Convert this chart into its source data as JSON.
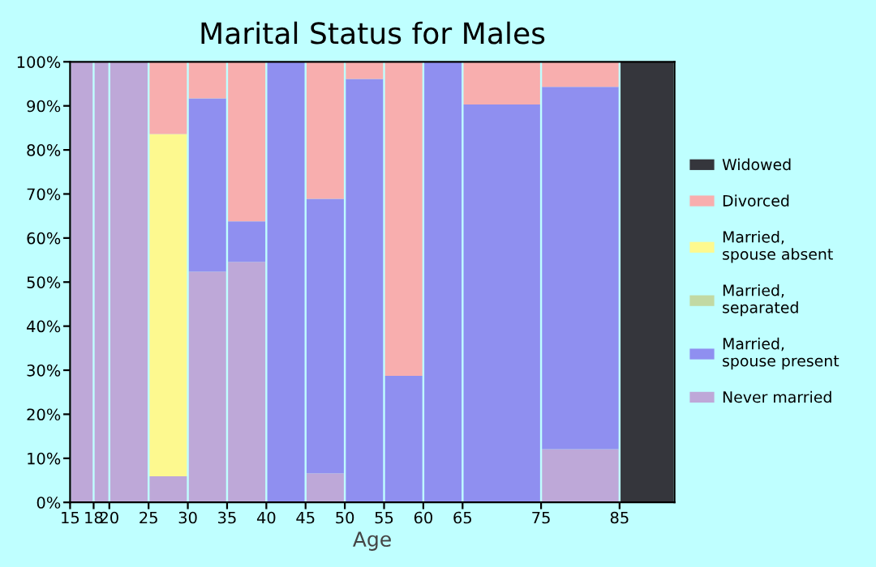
{
  "chart_data": {
    "type": "bar",
    "stacked": true,
    "title": "Marital Status for Males",
    "xlabel": "Age",
    "x": [
      16.5,
      19,
      22.5,
      27.5,
      32.5,
      37.5,
      42.5,
      47.5,
      52.5,
      57.5,
      62.5,
      70,
      80,
      88.5
    ],
    "series": [
      {
        "name": "Never married",
        "color": "#bea8d8",
        "values": [
          100,
          100,
          100,
          5.9,
          52.4,
          54.6,
          0,
          6.6,
          0,
          0,
          0,
          0,
          12.1,
          0
        ]
      },
      {
        "name": "Married,\nspouse present",
        "color": "#8f8ff0",
        "values": [
          0,
          0,
          0,
          0,
          39.3,
          9.2,
          100,
          62.3,
          96.1,
          28.7,
          100,
          90.3,
          82.2,
          0
        ]
      },
      {
        "name": "Married,\nseparated",
        "color": "#c2d9a3",
        "values": [
          0,
          0,
          0,
          0,
          0,
          0,
          0,
          0,
          0,
          0,
          0,
          0,
          0,
          0
        ]
      },
      {
        "name": "Married,\nspouse absent",
        "color": "#fdf98f",
        "values": [
          0,
          0,
          0,
          77.7,
          0,
          0,
          0,
          0,
          0,
          0,
          0,
          0,
          0,
          0
        ]
      },
      {
        "name": "Divorced",
        "color": "#f8aeae",
        "values": [
          0,
          0,
          0,
          16.4,
          8.3,
          36.2,
          0,
          31.1,
          3.9,
          71.3,
          0,
          9.7,
          5.7,
          0
        ]
      },
      {
        "name": "Widowed",
        "color": "#35363c",
        "values": [
          0,
          0,
          0,
          0,
          0,
          0,
          0,
          0,
          0,
          0,
          0,
          0,
          0,
          100
        ]
      }
    ],
    "xlim": [
      15,
      92
    ],
    "xticks": [
      15,
      18,
      20,
      25,
      30,
      35,
      40,
      45,
      50,
      55,
      60,
      65,
      75,
      85
    ],
    "ylim": [
      0,
      100
    ],
    "yticks": [
      {
        "value": 0,
        "label": "0%"
      },
      {
        "value": 10,
        "label": "10%"
      },
      {
        "value": 20,
        "label": "20%"
      },
      {
        "value": 30,
        "label": "30%"
      },
      {
        "value": 40,
        "label": "40%"
      },
      {
        "value": 50,
        "label": "50%"
      },
      {
        "value": 60,
        "label": "60%"
      },
      {
        "value": 70,
        "label": "70%"
      },
      {
        "value": 80,
        "label": "80%"
      },
      {
        "value": 90,
        "label": "90%"
      },
      {
        "value": 100,
        "label": "100%"
      }
    ],
    "grid": false,
    "legend": "right"
  }
}
